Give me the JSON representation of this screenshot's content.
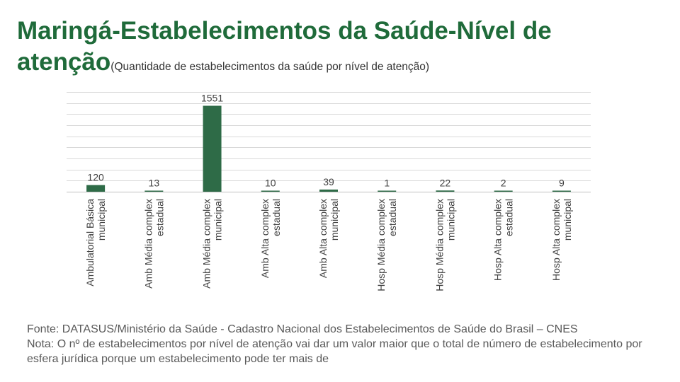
{
  "header": {
    "title": "Maringá-Estabelecimentos da Saúde-Nível de atenção",
    "subtitle": "(Quantidade de estabelecimentos da saúde por nível de atenção)"
  },
  "colors": {
    "title": "#1f6b3a",
    "bar": "#2e6b47",
    "gridline": "#d9d9d9",
    "text": "#404040"
  },
  "chart_data": {
    "type": "bar",
    "categories": [
      "Ambulatorial Básica municipal",
      "Amb Média complex estadual",
      "Amb Média complex municipal",
      "Amb Alta complex estadual",
      "Amb Alta complex municipal",
      "Hosp Média complex estadual",
      "Hosp Média complex municipal",
      "Hosp Alta complex estadual",
      "Hosp Alta complex municipal"
    ],
    "values": [
      120,
      13,
      1551,
      10,
      39,
      1,
      22,
      2,
      9
    ],
    "data_labels": [
      "120",
      "13",
      "1551",
      "10",
      "39",
      "1",
      "22",
      "2",
      "9"
    ],
    "ylim": [
      0,
      1800
    ],
    "grid": true,
    "y_axis_visible": false
  },
  "footer": {
    "source": "Fonte:  DATASUS/Ministério da Saúde - Cadastro Nacional dos Estabelecimentos de Saúde do Brasil – CNES",
    "note": "Nota: O nº de estabelecimentos por nível de atenção vai dar um valor maior que o total de número de estabelecimento por esfera jurídica porque um estabelecimento pode ter mais de"
  }
}
